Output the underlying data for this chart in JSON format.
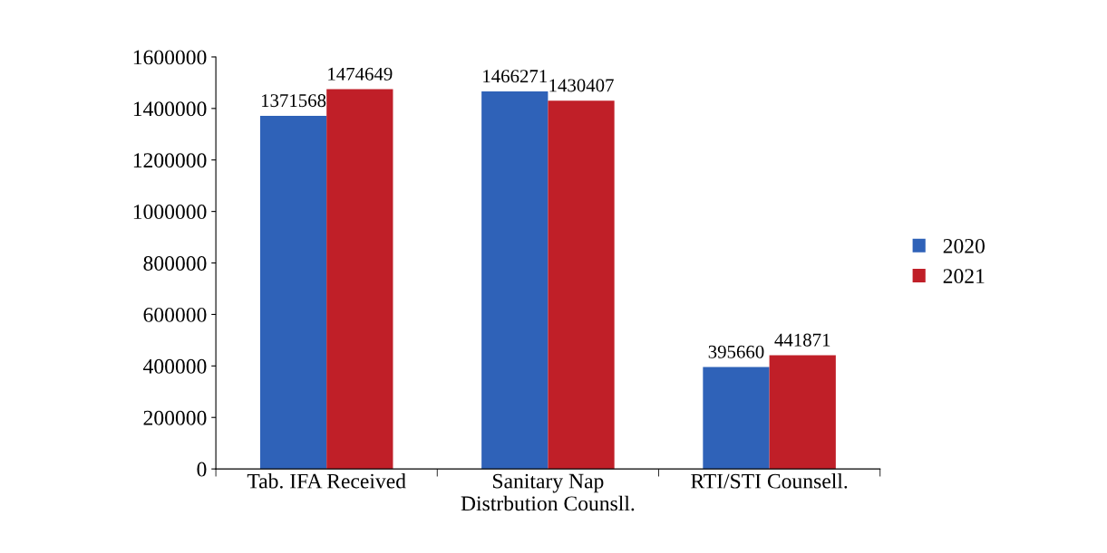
{
  "chart_data": {
    "type": "bar",
    "categories": [
      "Tab. IFA Received",
      "Sanitary Nap\nDistrbution Counsll.",
      "RTI/STI Counsell."
    ],
    "series": [
      {
        "name": "2020",
        "color": "#2f62b8",
        "values": [
          1371568,
          1466271,
          395660
        ]
      },
      {
        "name": "2021",
        "color": "#c01f28",
        "values": [
          1474649,
          1430407,
          441871
        ]
      }
    ],
    "ylim": [
      0,
      1600000
    ],
    "yticks": [
      0,
      200000,
      400000,
      600000,
      800000,
      1000000,
      1200000,
      1400000,
      1600000
    ],
    "data_labels": true,
    "grid": false,
    "legend": "right"
  }
}
